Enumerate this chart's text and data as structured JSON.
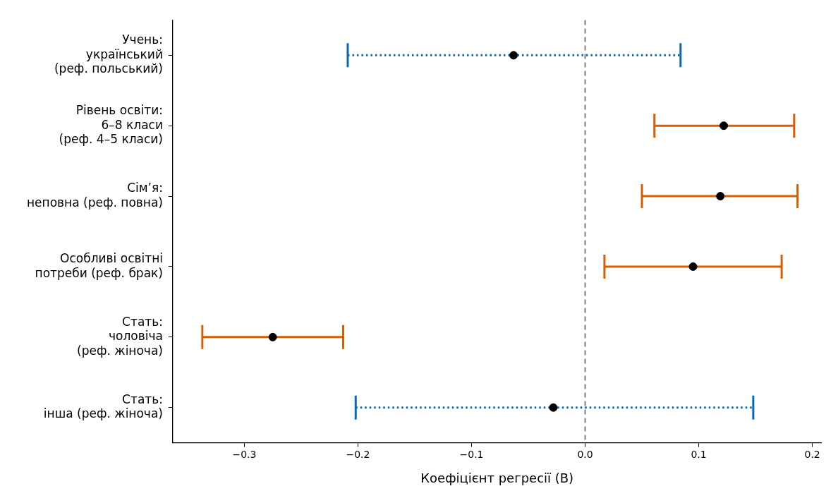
{
  "chart_data": {
    "type": "scatter",
    "orientation": "horizontal",
    "categories": [
      "Учень:\nукраїнський\n(реф. польський)",
      "Рівень освіти:\n6–8 класи\n(реф. 4–5 класи)",
      "Сім’я:\nнеповна (реф. повна)",
      "Особливі освітні\nпотреби (реф. брак)",
      "Стать:\nчоловіча\n(реф. жіноча)",
      "Стать:\nінша (реф. жіноча)"
    ],
    "series": [
      {
        "color": "#0868b4",
        "line_style": "dotted",
        "colors": [
          "#000000",
          null,
          null,
          null,
          null,
          "#000000"
        ],
        "values": [
          -0.063,
          null,
          null,
          null,
          null,
          -0.028
        ],
        "errors": [
          [
            -0.209,
            0.084
          ],
          null,
          null,
          null,
          null,
          [
            -0.202,
            0.148
          ]
        ]
      },
      {
        "color": "#d55e00",
        "line_style": "solid",
        "colors": [
          null,
          "#000000",
          "#000000",
          "#000000",
          "#000000",
          null
        ],
        "values": [
          null,
          0.122,
          0.119,
          0.095,
          -0.275,
          null
        ],
        "errors": [
          null,
          [
            0.061,
            0.184
          ],
          [
            0.05,
            0.187
          ],
          [
            0.017,
            0.173
          ],
          [
            -0.337,
            -0.213
          ],
          null
        ]
      }
    ],
    "marker": "circle",
    "xlabel": "Коефіцієнт регресії (B)",
    "xlim": [
      -0.363,
      0.208
    ],
    "xticks": [
      {
        "value": -0.3,
        "label": "−0.3"
      },
      {
        "value": -0.2,
        "label": "−0.2"
      },
      {
        "value": -0.1,
        "label": "−0.1"
      },
      {
        "value": 0,
        "label": "0.0"
      },
      {
        "value": 0.1,
        "label": "0.1"
      },
      {
        "value": 0.2,
        "label": "0.2"
      }
    ],
    "ref_lines": [
      {
        "axis": "x",
        "value": 0,
        "color": "#808080",
        "line_style": "dashed"
      }
    ],
    "grid": false,
    "legend": false
  }
}
